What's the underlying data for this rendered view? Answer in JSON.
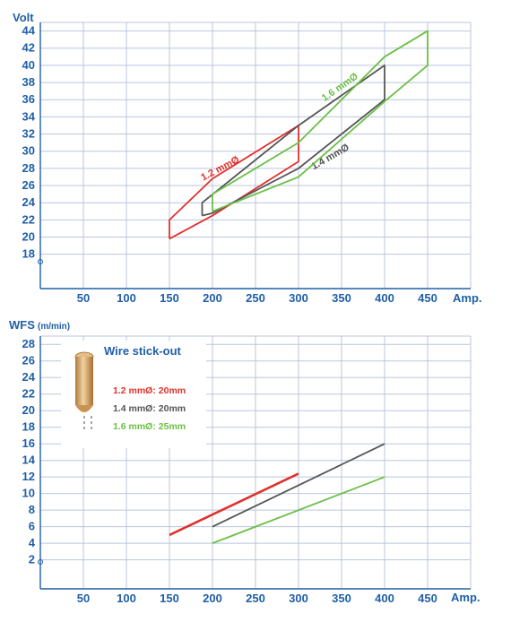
{
  "colors": {
    "red": "#e0312d",
    "gray": "#555555",
    "green": "#6bbf45",
    "axis": "#1f5fa8",
    "grid": "#b9c6dd"
  },
  "chart_data": [
    {
      "type": "area",
      "ylabel": "Volt",
      "xlabel": "Amp.",
      "x_ticks": [
        "50",
        "100",
        "150",
        "200",
        "250",
        "300",
        "350",
        "400",
        "450"
      ],
      "y_ticks": [
        "18",
        "20",
        "22",
        "24",
        "26",
        "28",
        "30",
        "32",
        "34",
        "36",
        "38",
        "40",
        "42",
        "44"
      ],
      "xlim": [
        0,
        500
      ],
      "ylim": [
        14,
        45
      ],
      "grid": true,
      "series": [
        {
          "name": "1.2 mmØ",
          "color": "#e0312d",
          "x": [
            150,
            150,
            200,
            300,
            300,
            200,
            150
          ],
          "y": [
            19.8,
            22,
            26.8,
            33,
            28.8,
            22.5,
            19.8
          ]
        },
        {
          "name": "1.4 mmØ",
          "color": "#555555",
          "x": [
            188,
            188,
            300,
            400,
            400,
            300,
            200,
            188
          ],
          "y": [
            22.5,
            24,
            33,
            40,
            36,
            28,
            22.8,
            22.5
          ]
        },
        {
          "name": "1.6 mmØ",
          "color": "#6bbf45",
          "x": [
            200,
            200,
            300,
            400,
            450,
            450,
            400,
            300,
            200
          ],
          "y": [
            23,
            25,
            31,
            41,
            44,
            40,
            35.8,
            27,
            23
          ]
        }
      ]
    },
    {
      "type": "line",
      "ylabel": "WFS",
      "ylabel_unit": "(m/min)",
      "xlabel": "Amp.",
      "x_ticks": [
        "50",
        "100",
        "150",
        "200",
        "250",
        "300",
        "350",
        "400",
        "450"
      ],
      "y_ticks": [
        "2",
        "4",
        "6",
        "8",
        "10",
        "12",
        "14",
        "16",
        "18",
        "20",
        "22",
        "24",
        "26",
        "28"
      ],
      "xlim": [
        0,
        500
      ],
      "ylim": [
        -1.5,
        29
      ],
      "grid": true,
      "series": [
        {
          "name": "1.2 mmØ",
          "color": "#e0312d",
          "x": [
            150,
            300
          ],
          "y": [
            5,
            12.4
          ]
        },
        {
          "name": "1.4 mmØ",
          "color": "#555555",
          "x": [
            200,
            400
          ],
          "y": [
            6,
            16
          ]
        },
        {
          "name": "1.6 mmØ",
          "color": "#6bbf45",
          "x": [
            200,
            400
          ],
          "y": [
            4,
            12
          ]
        }
      ],
      "inset": {
        "title": "Wire stick-out",
        "items": [
          {
            "text": "1.2 mmØ: 20mm",
            "color": "#e0312d"
          },
          {
            "text": "1.4 mmØ: 20mm",
            "color": "#555555"
          },
          {
            "text": "1.6 mmØ: 25mm",
            "color": "#6bbf45"
          }
        ]
      }
    }
  ]
}
